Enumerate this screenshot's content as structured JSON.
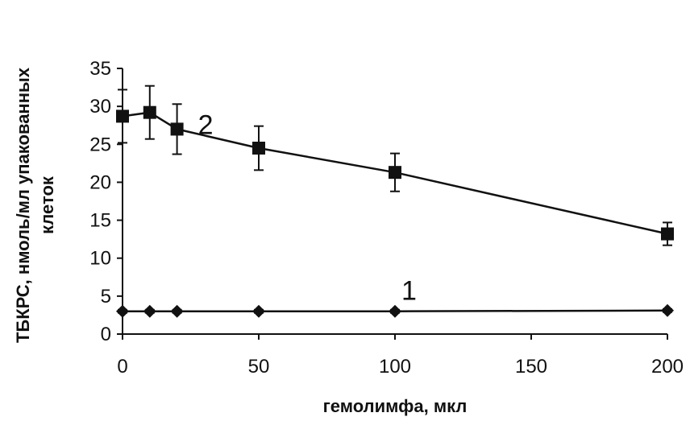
{
  "chart_data": {
    "type": "line",
    "xlabel": "гемолимфа, мкл",
    "ylabel_line1": "ТБКРС, нмоль/мл упакованных",
    "ylabel_line2": "клеток",
    "xlim": [
      0,
      200
    ],
    "ylim": [
      0,
      35
    ],
    "xticks": [
      0,
      50,
      100,
      150,
      200
    ],
    "yticks": [
      0,
      5,
      10,
      15,
      20,
      25,
      30,
      35
    ],
    "grid": false,
    "series": [
      {
        "name": "2",
        "marker": "square",
        "x": [
          0,
          10,
          20,
          50,
          100,
          200
        ],
        "y": [
          28.7,
          29.2,
          27.0,
          24.5,
          21.3,
          13.2
        ],
        "err": [
          3.5,
          3.5,
          3.3,
          2.9,
          2.5,
          1.5
        ]
      },
      {
        "name": "1",
        "marker": "diamond",
        "x": [
          0,
          10,
          20,
          50,
          100,
          200
        ],
        "y": [
          3.0,
          3.0,
          3.0,
          3.0,
          3.0,
          3.1
        ],
        "err": [
          0.2,
          0.2,
          0.2,
          0.2,
          0.2,
          0.2
        ]
      }
    ],
    "colors": {
      "line": "#111111",
      "axis": "#111111"
    }
  }
}
